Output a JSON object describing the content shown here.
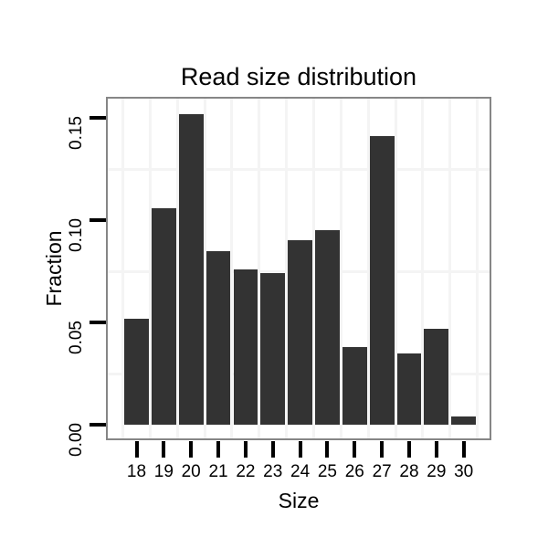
{
  "chart_data": {
    "type": "bar",
    "title": "Read size distribution",
    "xlabel": "Size",
    "ylabel": "Fraction",
    "categories": [
      "18",
      "19",
      "20",
      "21",
      "22",
      "23",
      "24",
      "25",
      "26",
      "27",
      "28",
      "29",
      "30"
    ],
    "values": [
      0.052,
      0.106,
      0.152,
      0.085,
      0.076,
      0.074,
      0.09,
      0.095,
      0.038,
      0.141,
      0.035,
      0.047,
      0.004
    ],
    "y_tick_labels": [
      "0.00",
      "0.05",
      "0.10",
      "0.15"
    ],
    "y_tick_values": [
      0,
      0.05,
      0.1,
      0.15
    ],
    "ylim": [
      -0.0076,
      0.1598
    ],
    "grid": {
      "minor_y_values": [
        0.025,
        0.075,
        0.125
      ],
      "minor_x_between_categories": true,
      "major_gridlines_visible": false
    },
    "legend_position": "none",
    "y_axis_text_rotation_deg": 90,
    "colors": {
      "bar": "#333333",
      "panel_border": "#868686",
      "grid_minor": "#f4f4f4",
      "tick": "#000000",
      "text": "#000000",
      "background": "#ffffff"
    }
  }
}
